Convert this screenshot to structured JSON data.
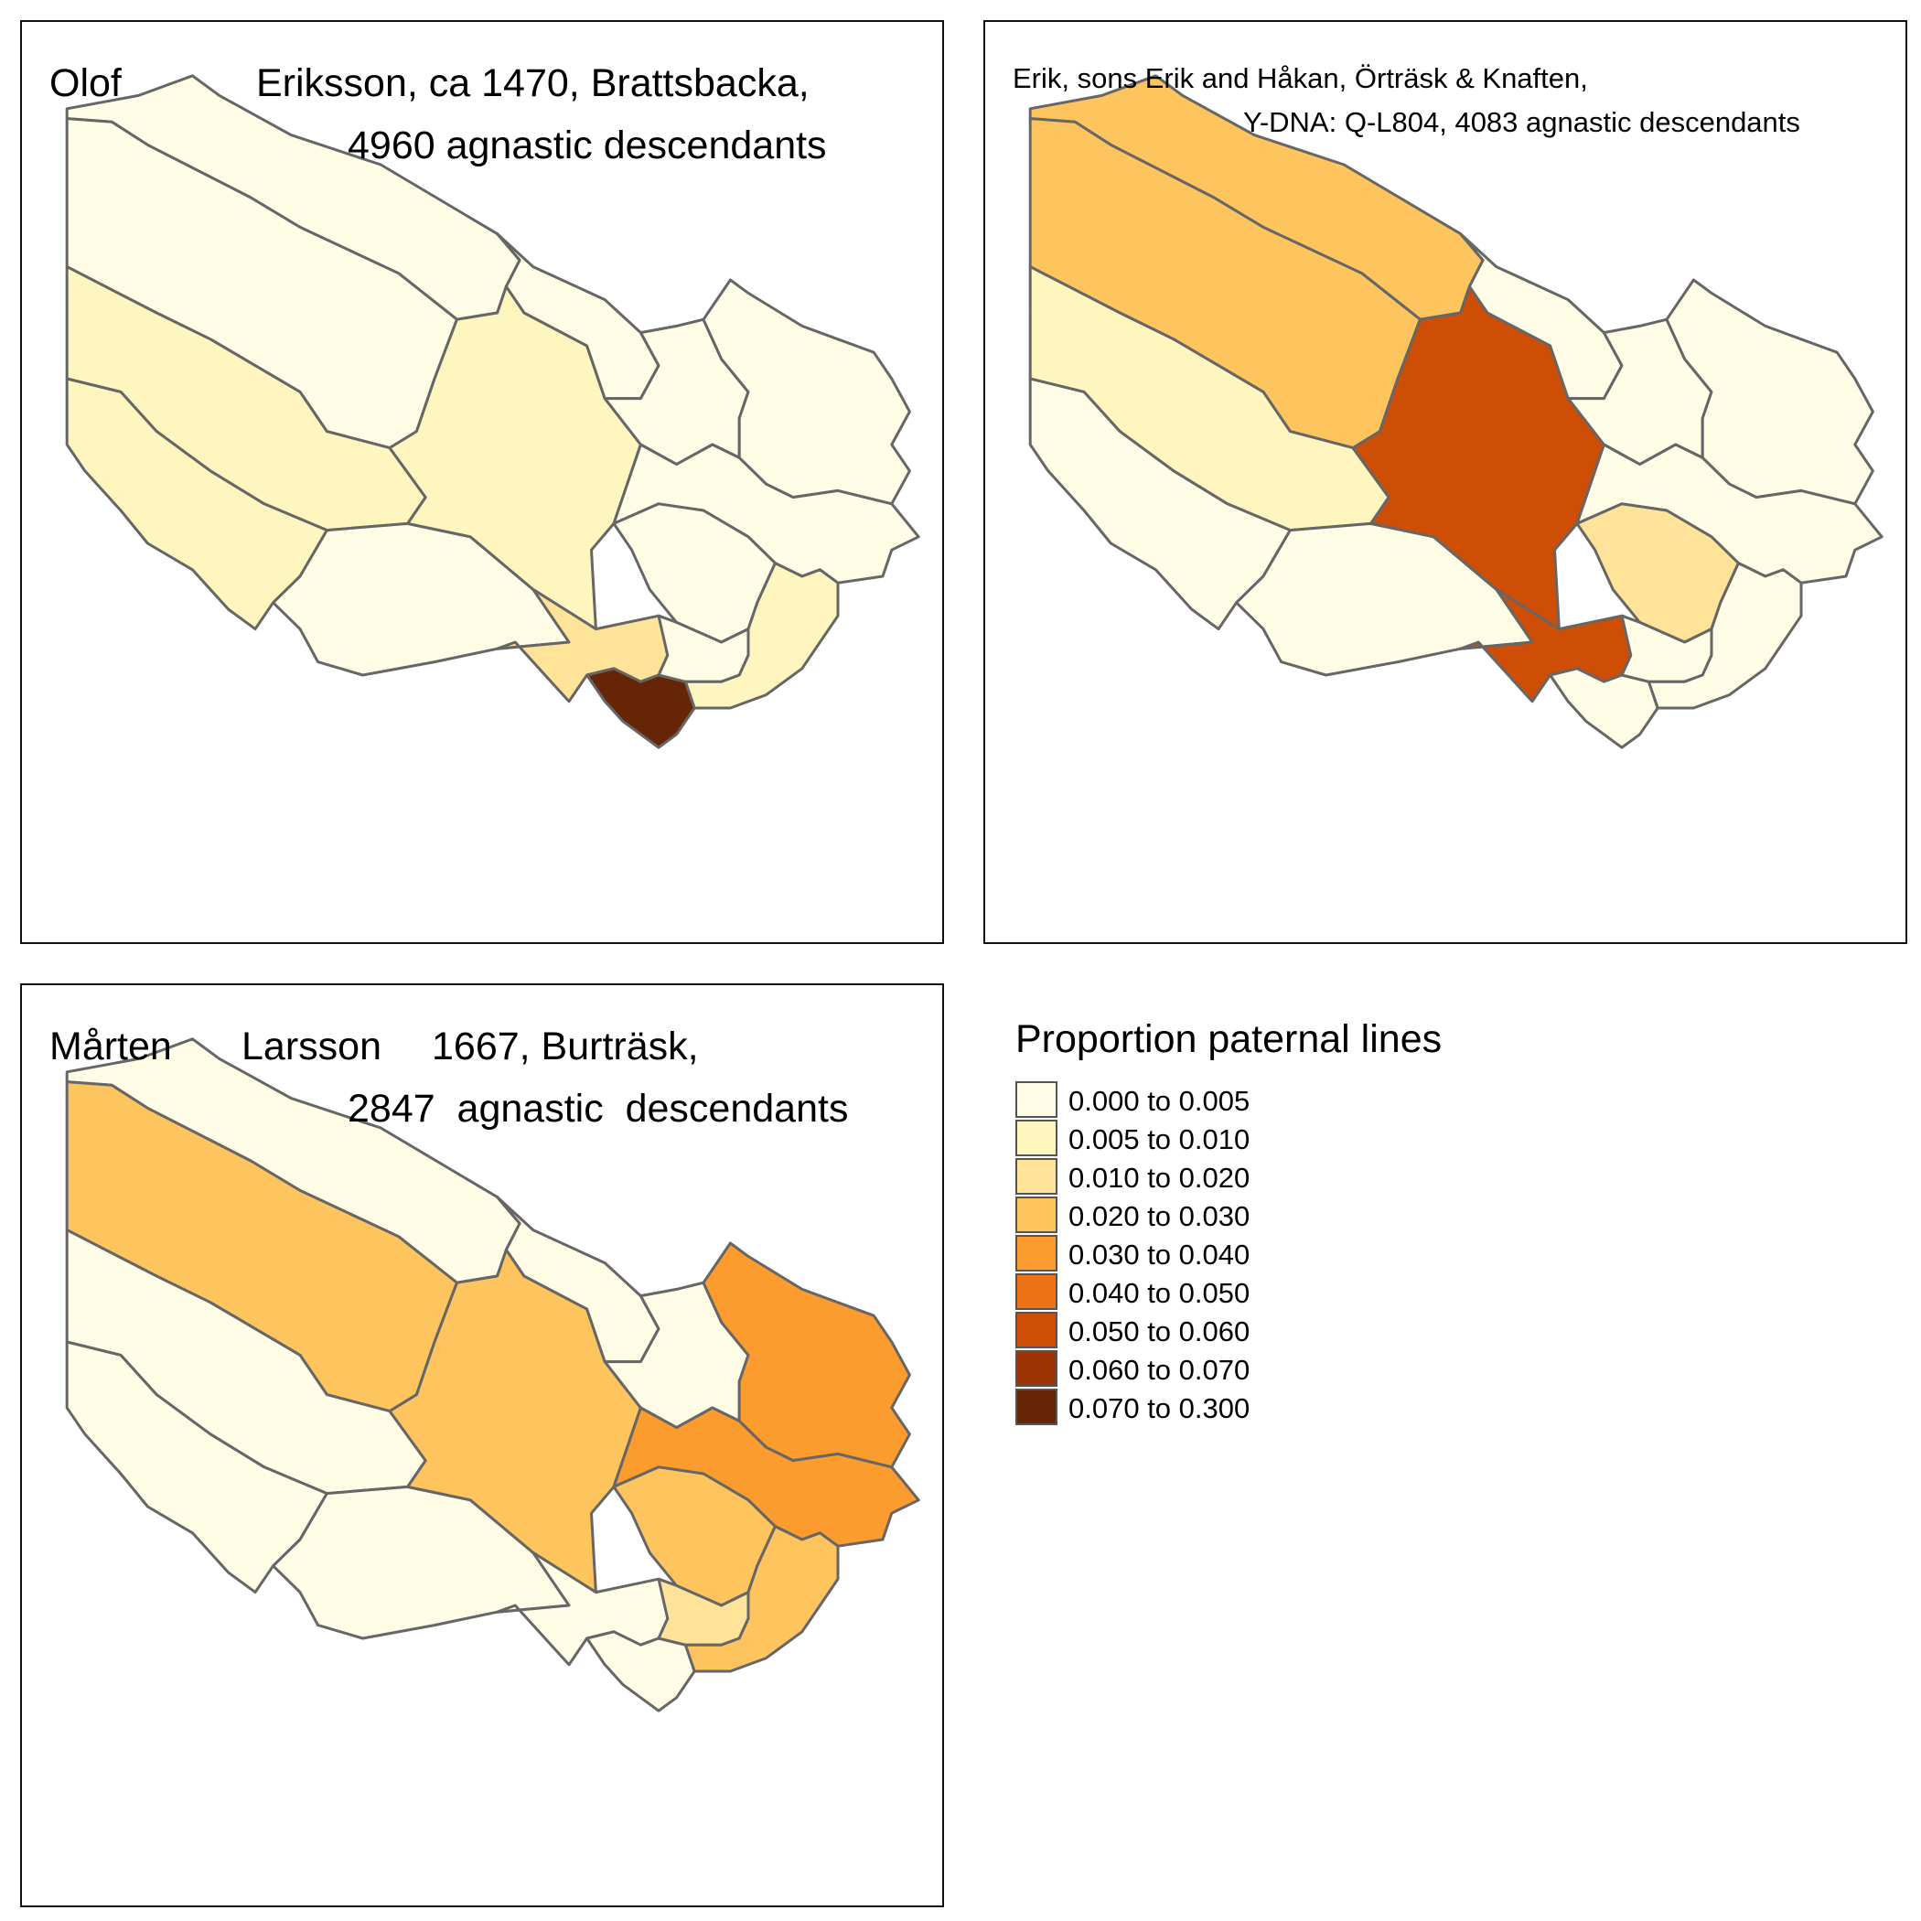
{
  "colors": {
    "c0": "#FFFDE6",
    "c1": "#FEF5BF",
    "c2": "#FEE398",
    "c3": "#FEC45E",
    "c4": "#FC9C2E",
    "c5": "#EE7316",
    "c6": "#CF4E06",
    "c7": "#9C3303",
    "c8": "#662506",
    "border": "#666666"
  },
  "map_fill_classes": {
    "panel1": {
      "r1": "c0",
      "r2": "c0",
      "r3": "c1",
      "r4": "c1",
      "r5": "c0",
      "r6": "c1",
      "r7": "c0",
      "r8": "c0",
      "r9": "c0",
      "r10": "c0",
      "r11": "c0",
      "r12": "c2",
      "r13": "c8",
      "r14": "c0",
      "r15": "c1"
    },
    "panel2": {
      "r1": "c3",
      "r2": "c3",
      "r3": "c1",
      "r4": "c0",
      "r5": "c0",
      "r6": "c6",
      "r7": "c0",
      "r8": "c0",
      "r9": "c0",
      "r10": "c0",
      "r11": "c2",
      "r12": "c6",
      "r13": "c0",
      "r14": "c0",
      "r15": "c0"
    },
    "panel3": {
      "r1": "c0",
      "r2": "c3",
      "r3": "c0",
      "r4": "c0",
      "r5": "c0",
      "r6": "c3",
      "r7": "c0",
      "r8": "c0",
      "r9": "c4",
      "r10": "c4",
      "r11": "c3",
      "r12": "c0",
      "r13": "c0",
      "r14": "c2",
      "r15": "c3"
    }
  },
  "panels": {
    "p1": {
      "line1a": "Olof",
      "line1b": "Eriksson, ca 1470, Brattsbacka,",
      "line2": "4960 agnastic descendants"
    },
    "p2": {
      "line1": "Erik, sons Erik and Håkan, Örträsk & Knaften,",
      "line2": "Y-DNA: Q-L804, 4083 agnastic descendants"
    },
    "p3": {
      "line1a": "Mårten",
      "line1b": "Larsson",
      "line1c": "1667, Burträsk,",
      "line2": "2847  agnastic  descendants"
    }
  },
  "legend": {
    "title": "Proportion paternal lines",
    "items": [
      {
        "label": "0.000 to 0.005",
        "color": "#FFFDE6"
      },
      {
        "label": "0.005 to 0.010",
        "color": "#FEF5BF"
      },
      {
        "label": "0.010 to 0.020",
        "color": "#FEE398"
      },
      {
        "label": "0.020 to 0.030",
        "color": "#FEC45E"
      },
      {
        "label": "0.030 to 0.040",
        "color": "#FC9C2E"
      },
      {
        "label": "0.040 to 0.050",
        "color": "#EE7316"
      },
      {
        "label": "0.050 to 0.060",
        "color": "#CF4E06"
      },
      {
        "label": "0.060 to 0.070",
        "color": "#9C3303"
      },
      {
        "label": "0.070 to 0.300",
        "color": "#662506"
      }
    ]
  }
}
